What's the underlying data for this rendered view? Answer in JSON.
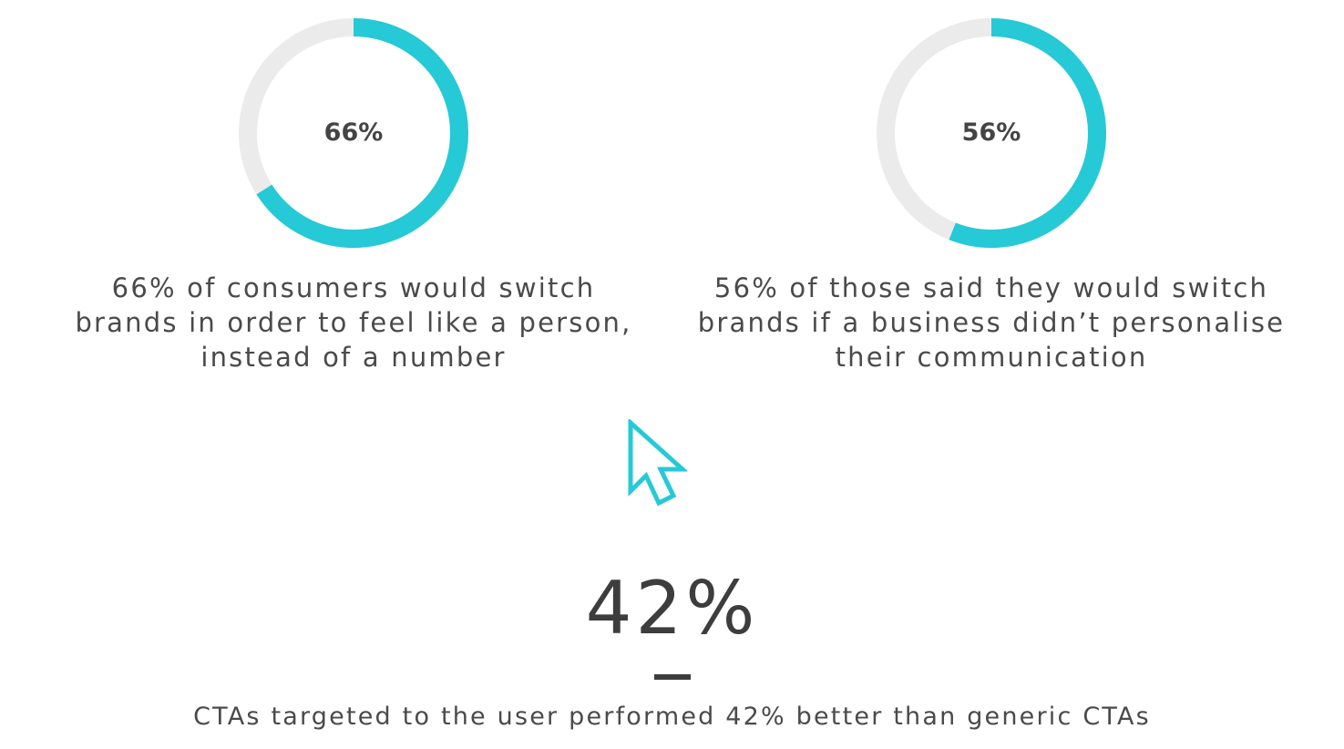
{
  "colors": {
    "accent": "#26c9d6",
    "track": "#ebebeb",
    "text": "#444444"
  },
  "chart_data": [
    {
      "type": "pie",
      "style": "donut",
      "values": [
        66
      ],
      "center_label": "66%",
      "caption": "66% of consumers would switch brands in order to feel like a person, instead of a number"
    },
    {
      "type": "pie",
      "style": "donut",
      "values": [
        56
      ],
      "center_label": "56%",
      "caption": "56% of those said they would switch brands if a business didn’t personalise their communication"
    }
  ],
  "stat": {
    "value": "42%",
    "caption": "CTAs targeted to the user performed 42% better than generic CTAs",
    "icon": "cursor-arrow-icon"
  }
}
